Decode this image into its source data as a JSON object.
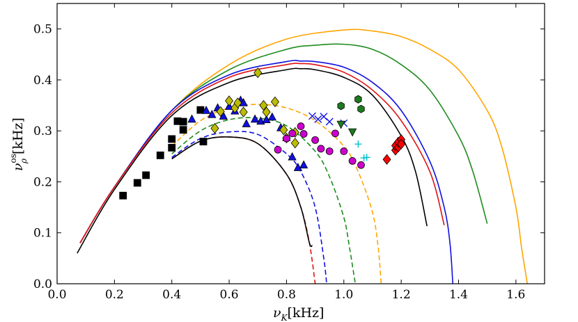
{
  "chart_data": {
    "type": "scatter",
    "title": "",
    "xlabel": {
      "symbol": "ν",
      "sub": "K",
      "unit": "[kHz]"
    },
    "ylabel": {
      "symbol": "ν",
      "sup": "os",
      "sub": "ρ",
      "unit": "[kHz]"
    },
    "xlim": [
      0.0,
      1.7
    ],
    "ylim": [
      0.0,
      0.55
    ],
    "xticks": [
      "0.0",
      "0.2",
      "0.4",
      "0.6",
      "0.8",
      "1.0",
      "1.2",
      "1.4",
      "1.6"
    ],
    "yticks": [
      "0.0",
      "0.1",
      "0.2",
      "0.3",
      "0.4",
      "0.5"
    ],
    "grid": false,
    "legend": "none",
    "lines": [
      {
        "name": "solid-orange",
        "color": "#FFA500",
        "dashed": false,
        "x": [
          0.08,
          0.2,
          0.4,
          0.6,
          0.8,
          1.0,
          1.1,
          1.2,
          1.3,
          1.4,
          1.5,
          1.55,
          1.6,
          1.62,
          1.64
        ],
        "y": [
          0.08,
          0.19,
          0.34,
          0.43,
          0.48,
          0.498,
          0.496,
          0.485,
          0.46,
          0.42,
          0.34,
          0.27,
          0.15,
          0.07,
          0.0
        ]
      },
      {
        "name": "solid-green",
        "color": "#1E8B1E",
        "dashed": false,
        "x": [
          0.08,
          0.2,
          0.4,
          0.6,
          0.8,
          0.9,
          1.0,
          1.1,
          1.2,
          1.3,
          1.4,
          1.45,
          1.5
        ],
        "y": [
          0.08,
          0.19,
          0.34,
          0.42,
          0.46,
          0.468,
          0.47,
          0.46,
          0.43,
          0.38,
          0.29,
          0.22,
          0.118
        ]
      },
      {
        "name": "solid-blue",
        "color": "#1010E0",
        "dashed": false,
        "x": [
          0.08,
          0.2,
          0.4,
          0.6,
          0.8,
          0.85,
          0.9,
          1.0,
          1.1,
          1.2,
          1.3,
          1.35,
          1.37,
          1.38
        ],
        "y": [
          0.08,
          0.19,
          0.34,
          0.41,
          0.436,
          0.437,
          0.436,
          0.425,
          0.395,
          0.34,
          0.24,
          0.15,
          0.08,
          0.0
        ]
      },
      {
        "name": "solid-red",
        "color": "#E01010",
        "dashed": false,
        "x": [
          0.08,
          0.2,
          0.4,
          0.6,
          0.8,
          0.85,
          0.9,
          1.0,
          1.1,
          1.2,
          1.3,
          1.35
        ],
        "y": [
          0.08,
          0.19,
          0.335,
          0.405,
          0.43,
          0.432,
          0.43,
          0.415,
          0.38,
          0.32,
          0.22,
          0.115
        ]
      },
      {
        "name": "solid-black",
        "color": "#000000",
        "dashed": false,
        "x": [
          0.07,
          0.2,
          0.4,
          0.6,
          0.8,
          0.85,
          0.9,
          1.0,
          1.1,
          1.2,
          1.25,
          1.29
        ],
        "y": [
          0.06,
          0.185,
          0.33,
          0.395,
          0.42,
          0.422,
          0.42,
          0.405,
          0.37,
          0.29,
          0.22,
          0.113
        ]
      },
      {
        "name": "dashed-orange",
        "color": "#FFA500",
        "dashed": true,
        "x": [
          0.4,
          0.5,
          0.6,
          0.7,
          0.8,
          0.9,
          1.0,
          1.05,
          1.1,
          1.12,
          1.13
        ],
        "y": [
          0.27,
          0.32,
          0.345,
          0.352,
          0.345,
          0.32,
          0.27,
          0.22,
          0.14,
          0.07,
          0.0
        ]
      },
      {
        "name": "dashed-green",
        "color": "#1E8B1E",
        "dashed": true,
        "x": [
          0.4,
          0.5,
          0.6,
          0.7,
          0.8,
          0.9,
          0.95,
          1.0,
          1.02,
          1.04
        ],
        "y": [
          0.255,
          0.3,
          0.322,
          0.325,
          0.31,
          0.26,
          0.21,
          0.13,
          0.07,
          0.0
        ]
      },
      {
        "name": "dashed-blue",
        "color": "#1010E0",
        "dashed": true,
        "x": [
          0.4,
          0.5,
          0.6,
          0.7,
          0.8,
          0.85,
          0.9,
          0.93,
          0.94
        ],
        "y": [
          0.248,
          0.285,
          0.298,
          0.293,
          0.255,
          0.22,
          0.15,
          0.05,
          0.0
        ]
      },
      {
        "name": "dashed-red",
        "color": "#E01010",
        "dashed": true,
        "x": [
          0.4,
          0.5,
          0.6,
          0.7,
          0.8,
          0.85,
          0.88,
          0.9
        ],
        "y": [
          0.245,
          0.28,
          0.288,
          0.275,
          0.215,
          0.15,
          0.08,
          0.0
        ]
      },
      {
        "name": "solid-black-inner",
        "color": "#000000",
        "dashed": false,
        "x": [
          0.4,
          0.5,
          0.6,
          0.7,
          0.8,
          0.85,
          0.88,
          0.89
        ],
        "y": [
          0.245,
          0.28,
          0.288,
          0.275,
          0.215,
          0.15,
          0.08,
          0.075
        ]
      }
    ],
    "series": [
      {
        "name": "squares",
        "marker": "square",
        "color": "#000000",
        "x": [
          0.23,
          0.28,
          0.31,
          0.36,
          0.4,
          0.4,
          0.42,
          0.44,
          0.44,
          0.5,
          0.51
        ],
        "y": [
          0.173,
          0.198,
          0.213,
          0.252,
          0.267,
          0.284,
          0.319,
          0.318,
          0.302,
          0.341,
          0.279
        ]
      },
      {
        "name": "triangles",
        "marker": "triangle",
        "color": "#1010E0",
        "x": [
          0.47,
          0.52,
          0.54,
          0.56,
          0.58,
          0.6,
          0.62,
          0.64,
          0.65,
          0.66,
          0.69,
          0.71,
          0.73,
          0.75,
          0.78,
          0.8,
          0.82,
          0.84,
          0.86
        ],
        "y": [
          0.323,
          0.34,
          0.332,
          0.345,
          0.329,
          0.348,
          0.339,
          0.36,
          0.355,
          0.314,
          0.323,
          0.319,
          0.322,
          0.327,
          0.306,
          0.287,
          0.249,
          0.228,
          0.233
        ]
      },
      {
        "name": "diamonds",
        "marker": "diamond",
        "color": "#BDBD00",
        "x": [
          0.55,
          0.57,
          0.6,
          0.62,
          0.63,
          0.65,
          0.7,
          0.72,
          0.73,
          0.76,
          0.79,
          0.8,
          0.83,
          0.83
        ],
        "y": [
          0.305,
          0.338,
          0.359,
          0.345,
          0.355,
          0.337,
          0.414,
          0.35,
          0.337,
          0.357,
          0.302,
          0.286,
          0.276,
          0.297
        ]
      },
      {
        "name": "circles",
        "marker": "circle",
        "color": "#CC00CC",
        "x": [
          0.77,
          0.8,
          0.82,
          0.85,
          0.86,
          0.9,
          0.92,
          0.95,
          0.97,
          1.0,
          1.03,
          1.06
        ],
        "y": [
          0.263,
          0.285,
          0.295,
          0.309,
          0.294,
          0.282,
          0.265,
          0.26,
          0.295,
          0.26,
          0.241,
          0.233
        ]
      },
      {
        "name": "crosses",
        "marker": "x",
        "color": "#1010E0",
        "x": [
          0.89,
          0.91,
          0.93,
          0.95,
          1.0
        ],
        "y": [
          0.329,
          0.323,
          0.328,
          0.318,
          0.315
        ]
      },
      {
        "name": "down-triangles",
        "marker": "triangle-down",
        "color": "#1E7A1E",
        "x": [
          0.99,
          1.03
        ],
        "y": [
          0.313,
          0.298
        ]
      },
      {
        "name": "hexagons",
        "marker": "hexagon",
        "color": "#1E7A1E",
        "x": [
          0.99,
          1.05,
          1.06
        ],
        "y": [
          0.349,
          0.362,
          0.343
        ]
      },
      {
        "name": "pluses",
        "marker": "plus",
        "color": "#00C0D0",
        "x": [
          1.05,
          1.07,
          1.08
        ],
        "y": [
          0.274,
          0.247,
          0.248
        ]
      },
      {
        "name": "red-diamonds",
        "marker": "diamond",
        "color": "#FF0000",
        "x": [
          1.15,
          1.18,
          1.18,
          1.19,
          1.19,
          1.2,
          1.2
        ],
        "y": [
          0.244,
          0.262,
          0.271,
          0.268,
          0.278,
          0.283,
          0.274
        ]
      }
    ]
  }
}
